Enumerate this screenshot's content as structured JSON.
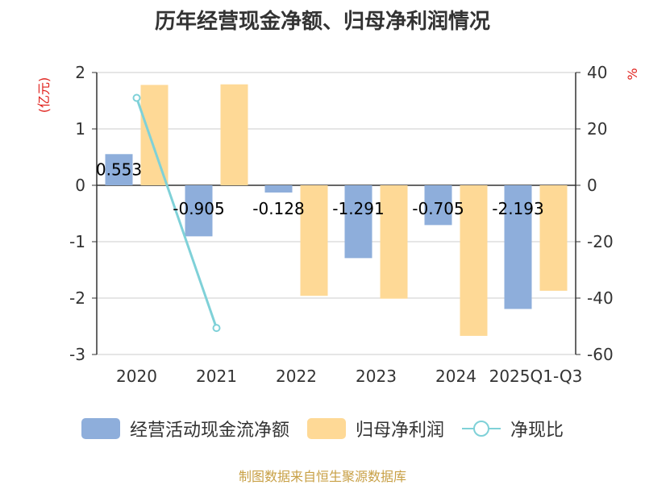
{
  "chart_data": {
    "type": "bar",
    "title": "历年经营现金净额、归母净利润情况",
    "categories": [
      "2020",
      "2021",
      "2022",
      "2023",
      "2024",
      "2025Q1-Q3"
    ],
    "y_left": {
      "label": "(亿元)",
      "ylim": [
        -3,
        2
      ],
      "ticks": [
        2,
        1,
        0,
        -1,
        -2,
        -3
      ]
    },
    "y_right": {
      "label": "%",
      "ylim": [
        -60,
        40
      ],
      "ticks": [
        40,
        20,
        0,
        -20,
        -40,
        -60
      ]
    },
    "series": [
      {
        "name": "经营活动现金流净额",
        "axis": "left",
        "type": "bar",
        "color": "#8eaedb",
        "values": [
          0.553,
          -0.905,
          -0.128,
          -1.291,
          -0.705,
          -2.193
        ],
        "labels": [
          "0.553",
          "-0.905",
          "-0.128",
          "-1.291",
          "-0.705",
          "-2.193"
        ]
      },
      {
        "name": "归母净利润",
        "axis": "left",
        "type": "bar",
        "color": "#fed996",
        "values": [
          1.78,
          1.79,
          -1.96,
          -2.01,
          -2.67,
          -1.87
        ]
      },
      {
        "name": "净现比",
        "axis": "right",
        "type": "line",
        "color": "#7fd1d8",
        "values": [
          31,
          -50.6,
          null,
          null,
          null,
          null
        ]
      }
    ]
  },
  "footer": {
    "source": "制图数据来自恒生聚源数据库"
  }
}
